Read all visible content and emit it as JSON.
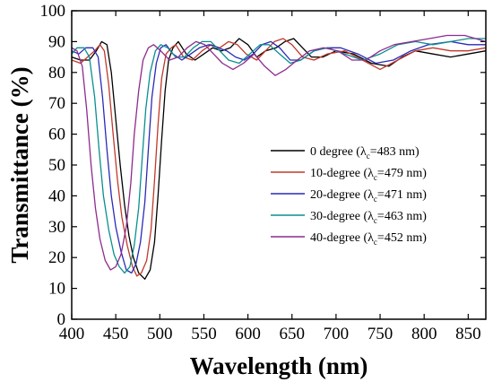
{
  "chart_data": {
    "type": "line",
    "xlabel": "Wavelength (nm)",
    "ylabel": "Transmittance (%)",
    "xlim": [
      400,
      870
    ],
    "ylim": [
      0,
      100
    ],
    "xticks": [
      400,
      450,
      500,
      550,
      600,
      650,
      700,
      750,
      800,
      850
    ],
    "yticks": [
      0,
      10,
      20,
      30,
      40,
      50,
      60,
      70,
      80,
      90,
      100
    ],
    "grid": false,
    "legend_position": "right",
    "series": [
      {
        "name_prefix": "0 degree (λ",
        "name_sub": "c",
        "name_suffix": "=483 nm)",
        "color": "#000000",
        "points": [
          [
            400,
            85
          ],
          [
            410,
            84
          ],
          [
            420,
            84
          ],
          [
            428,
            87
          ],
          [
            434,
            90
          ],
          [
            440,
            89
          ],
          [
            445,
            80
          ],
          [
            450,
            65
          ],
          [
            455,
            50
          ],
          [
            460,
            37
          ],
          [
            465,
            27
          ],
          [
            470,
            20
          ],
          [
            476,
            15
          ],
          [
            483,
            13
          ],
          [
            489,
            16
          ],
          [
            494,
            25
          ],
          [
            498,
            40
          ],
          [
            502,
            58
          ],
          [
            506,
            74
          ],
          [
            510,
            84
          ],
          [
            515,
            88
          ],
          [
            521,
            90
          ],
          [
            530,
            86
          ],
          [
            540,
            84
          ],
          [
            550,
            86
          ],
          [
            560,
            88
          ],
          [
            570,
            87
          ],
          [
            580,
            88
          ],
          [
            590,
            91
          ],
          [
            600,
            89
          ],
          [
            610,
            85
          ],
          [
            620,
            87
          ],
          [
            632,
            88
          ],
          [
            642,
            90
          ],
          [
            652,
            91
          ],
          [
            662,
            88
          ],
          [
            672,
            85
          ],
          [
            685,
            85
          ],
          [
            700,
            87
          ],
          [
            720,
            86
          ],
          [
            740,
            83
          ],
          [
            760,
            82
          ],
          [
            775,
            85
          ],
          [
            790,
            87
          ],
          [
            810,
            86
          ],
          [
            830,
            85
          ],
          [
            850,
            86
          ],
          [
            870,
            87
          ]
        ]
      },
      {
        "name_prefix": "10-degree (λ",
        "name_sub": "c",
        "name_suffix": "=479 nm)",
        "color": "#c0392b",
        "points": [
          [
            400,
            84
          ],
          [
            410,
            83
          ],
          [
            418,
            85
          ],
          [
            426,
            87
          ],
          [
            432,
            89
          ],
          [
            437,
            87
          ],
          [
            442,
            76
          ],
          [
            447,
            60
          ],
          [
            452,
            45
          ],
          [
            457,
            33
          ],
          [
            463,
            24
          ],
          [
            469,
            17
          ],
          [
            474,
            14
          ],
          [
            479,
            15
          ],
          [
            485,
            19
          ],
          [
            490,
            29
          ],
          [
            494,
            45
          ],
          [
            498,
            63
          ],
          [
            502,
            78
          ],
          [
            507,
            86
          ],
          [
            513,
            88
          ],
          [
            518,
            89
          ],
          [
            527,
            85
          ],
          [
            537,
            84
          ],
          [
            548,
            87
          ],
          [
            558,
            89
          ],
          [
            568,
            88
          ],
          [
            578,
            90
          ],
          [
            588,
            89
          ],
          [
            598,
            86
          ],
          [
            610,
            84
          ],
          [
            620,
            87
          ],
          [
            630,
            90
          ],
          [
            640,
            91
          ],
          [
            650,
            89
          ],
          [
            662,
            85
          ],
          [
            675,
            84
          ],
          [
            690,
            86
          ],
          [
            710,
            87
          ],
          [
            730,
            84
          ],
          [
            750,
            81
          ],
          [
            770,
            84
          ],
          [
            790,
            87
          ],
          [
            810,
            88
          ],
          [
            830,
            87
          ],
          [
            850,
            87
          ],
          [
            870,
            88
          ]
        ]
      },
      {
        "name_prefix": "20-degree (λ",
        "name_sub": "c",
        "name_suffix": "=471 nm)",
        "color": "#2a2ab8",
        "points": [
          [
            400,
            87
          ],
          [
            408,
            86
          ],
          [
            416,
            88
          ],
          [
            424,
            88
          ],
          [
            430,
            85
          ],
          [
            435,
            72
          ],
          [
            440,
            55
          ],
          [
            445,
            40
          ],
          [
            450,
            30
          ],
          [
            456,
            22
          ],
          [
            462,
            16
          ],
          [
            468,
            15
          ],
          [
            473,
            18
          ],
          [
            478,
            25
          ],
          [
            483,
            38
          ],
          [
            487,
            55
          ],
          [
            491,
            72
          ],
          [
            496,
            83
          ],
          [
            501,
            88
          ],
          [
            507,
            89
          ],
          [
            515,
            86
          ],
          [
            525,
            84
          ],
          [
            535,
            86
          ],
          [
            545,
            88
          ],
          [
            556,
            89
          ],
          [
            566,
            88
          ],
          [
            576,
            87
          ],
          [
            586,
            85
          ],
          [
            596,
            84
          ],
          [
            606,
            86
          ],
          [
            616,
            89
          ],
          [
            626,
            90
          ],
          [
            636,
            88
          ],
          [
            648,
            84
          ],
          [
            660,
            84
          ],
          [
            675,
            87
          ],
          [
            690,
            88
          ],
          [
            705,
            88
          ],
          [
            725,
            86
          ],
          [
            745,
            83
          ],
          [
            765,
            84
          ],
          [
            785,
            87
          ],
          [
            805,
            89
          ],
          [
            830,
            90
          ],
          [
            850,
            89
          ],
          [
            870,
            89
          ]
        ]
      },
      {
        "name_prefix": "30-degree (λ",
        "name_sub": "c",
        "name_suffix": "=463 nm)",
        "color": "#0a8f8f",
        "points": [
          [
            400,
            86
          ],
          [
            406,
            88
          ],
          [
            414,
            88
          ],
          [
            420,
            85
          ],
          [
            426,
            72
          ],
          [
            431,
            55
          ],
          [
            436,
            40
          ],
          [
            442,
            29
          ],
          [
            448,
            21
          ],
          [
            454,
            17
          ],
          [
            460,
            15
          ],
          [
            466,
            17
          ],
          [
            471,
            24
          ],
          [
            476,
            36
          ],
          [
            480,
            52
          ],
          [
            484,
            68
          ],
          [
            489,
            80
          ],
          [
            495,
            87
          ],
          [
            501,
            89
          ],
          [
            509,
            88
          ],
          [
            518,
            85
          ],
          [
            528,
            85
          ],
          [
            538,
            88
          ],
          [
            548,
            90
          ],
          [
            558,
            90
          ],
          [
            568,
            87
          ],
          [
            578,
            84
          ],
          [
            590,
            83
          ],
          [
            602,
            86
          ],
          [
            614,
            89
          ],
          [
            624,
            89
          ],
          [
            636,
            86
          ],
          [
            648,
            83
          ],
          [
            660,
            84
          ],
          [
            675,
            87
          ],
          [
            690,
            88
          ],
          [
            710,
            86
          ],
          [
            730,
            84
          ],
          [
            750,
            86
          ],
          [
            770,
            89
          ],
          [
            790,
            90
          ],
          [
            810,
            89
          ],
          [
            830,
            90
          ],
          [
            850,
            91
          ],
          [
            870,
            91
          ]
        ]
      },
      {
        "name_prefix": "40-degree (λ",
        "name_sub": "c",
        "name_suffix": "=452 nm)",
        "color": "#8e2a8e",
        "points": [
          [
            400,
            88
          ],
          [
            406,
            87
          ],
          [
            412,
            82
          ],
          [
            417,
            68
          ],
          [
            422,
            50
          ],
          [
            427,
            36
          ],
          [
            432,
            26
          ],
          [
            438,
            19
          ],
          [
            444,
            16
          ],
          [
            450,
            17
          ],
          [
            456,
            21
          ],
          [
            462,
            30
          ],
          [
            467,
            44
          ],
          [
            471,
            60
          ],
          [
            476,
            74
          ],
          [
            481,
            84
          ],
          [
            487,
            88
          ],
          [
            493,
            89
          ],
          [
            501,
            87
          ],
          [
            511,
            84
          ],
          [
            521,
            85
          ],
          [
            531,
            88
          ],
          [
            541,
            90
          ],
          [
            551,
            89
          ],
          [
            561,
            86
          ],
          [
            571,
            83
          ],
          [
            583,
            81
          ],
          [
            595,
            83
          ],
          [
            607,
            86
          ],
          [
            619,
            82
          ],
          [
            631,
            79
          ],
          [
            643,
            81
          ],
          [
            656,
            84
          ],
          [
            670,
            87
          ],
          [
            686,
            88
          ],
          [
            702,
            87
          ],
          [
            718,
            84
          ],
          [
            734,
            84
          ],
          [
            750,
            87
          ],
          [
            766,
            89
          ],
          [
            786,
            90
          ],
          [
            806,
            91
          ],
          [
            826,
            92
          ],
          [
            846,
            92
          ],
          [
            870,
            90
          ]
        ]
      }
    ]
  }
}
